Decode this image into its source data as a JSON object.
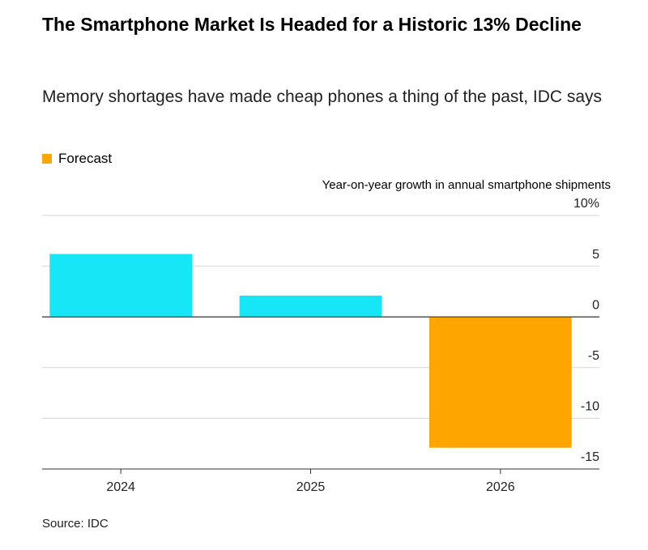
{
  "chart_data": {
    "type": "bar",
    "title": "The Smartphone Market Is Headed for a Historic 13% Decline",
    "subtitle": "Memory shortages have made cheap phones a thing of the past, IDC says",
    "legend": [
      {
        "label": "Forecast",
        "color": "#ffa500"
      }
    ],
    "y_axis_label": "Year-on-year growth in annual smartphone shipments",
    "categories": [
      "2024",
      "2025",
      "2026"
    ],
    "values": [
      6.2,
      2.1,
      -12.9
    ],
    "colors": [
      "#16e6f5",
      "#16e6f5",
      "#ffa500"
    ],
    "ylim": [
      -15,
      10
    ],
    "yticks": [
      {
        "value": 10,
        "label": "10%"
      },
      5,
      0,
      -5,
      -10,
      -15
    ],
    "grid": true,
    "source": "Source: IDC"
  }
}
